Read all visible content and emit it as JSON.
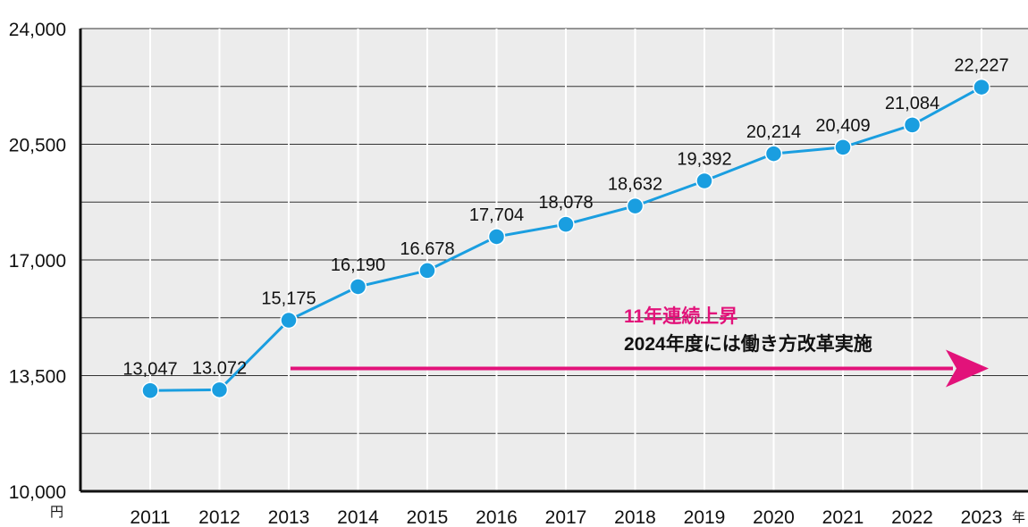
{
  "chart_data": {
    "type": "line",
    "x": [
      "2011",
      "2012",
      "2013",
      "2014",
      "2015",
      "2016",
      "2017",
      "2018",
      "2019",
      "2020",
      "2021",
      "2022",
      "2023"
    ],
    "values": [
      13047,
      13072,
      15175,
      16190,
      16678,
      17704,
      18078,
      18632,
      19392,
      20214,
      20409,
      21084,
      22227
    ],
    "value_labels": [
      "13,047",
      "13.072",
      "15,175",
      "16,190",
      "16.678",
      "17,704",
      "18,078",
      "18,632",
      "19,392",
      "20,214",
      "20,409",
      "21,084",
      "22,227"
    ],
    "ylim": [
      10000,
      24000
    ],
    "yticks": [
      10000,
      13500,
      17000,
      20500,
      24000
    ],
    "ytick_labels": [
      "10,000",
      "13,500",
      "17,000",
      "20,500",
      "24,000"
    ],
    "grid_step": 1750,
    "ylabel_unit": "円",
    "xlabel_unit": "年",
    "annotation": {
      "line1": "11年連続上昇",
      "line2": "2024年度には働き方改革実施",
      "arrow_from": "2013",
      "arrow_to": "2023"
    },
    "colors": {
      "line": "#1a9ee0",
      "plot_bg": "#ececec",
      "grid": "#333333",
      "annotation_text": "#e2127a",
      "arrow": "#e2127a"
    }
  }
}
